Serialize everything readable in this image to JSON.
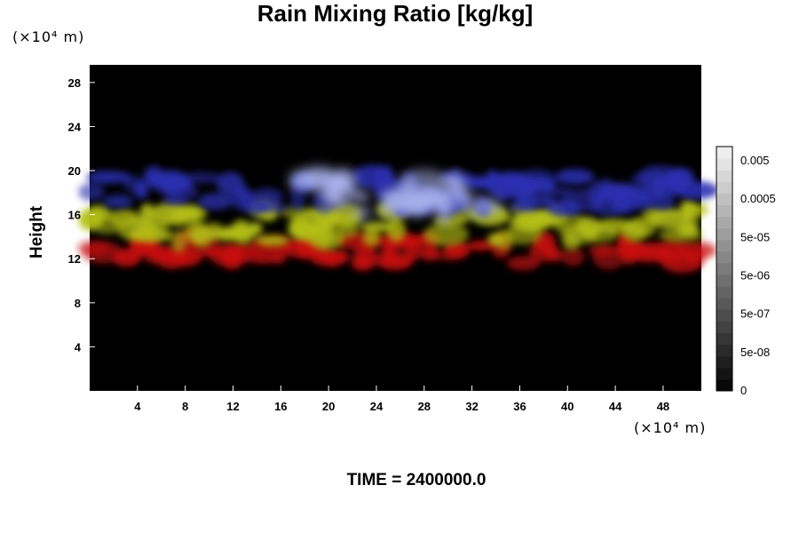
{
  "title": "Rain Mixing Ratio [kg/kg]",
  "y_unit": "(×10⁴ m)",
  "x_unit": "(×10⁴ m)",
  "ylabel": "Height",
  "time_label": "TIME = 2400000.0",
  "chart_data": {
    "type": "heatmap",
    "title": "Rain Mixing Ratio [kg/kg]",
    "xlabel": "",
    "ylabel": "Height",
    "x_unit": "(×10⁴ m)",
    "y_unit": "(×10⁴ m)",
    "xlim": [
      0,
      51.2
    ],
    "ylim": [
      0,
      29.6
    ],
    "x_ticks": [
      4,
      8,
      12,
      16,
      20,
      24,
      28,
      32,
      36,
      40,
      44,
      48
    ],
    "y_ticks": [
      4,
      8,
      12,
      16,
      20,
      24,
      28
    ],
    "grid": false,
    "colorbar": {
      "labels": [
        "0",
        "5e-08",
        "5e-07",
        "5e-06",
        "5e-05",
        "0.0005",
        "0.005"
      ],
      "levels": 21
    },
    "layers": [
      {
        "name": "red band",
        "color": "#c81010",
        "y_range": [
          11.5,
          13.8
        ],
        "x_range": [
          0,
          51.2
        ]
      },
      {
        "name": "yellow band",
        "color": "#b4bf14",
        "y_range": [
          13.5,
          16.5
        ],
        "x_range": [
          0,
          51.2
        ]
      },
      {
        "name": "blue band",
        "color": "#2a2fb0",
        "y_range": [
          16.5,
          19.5
        ],
        "x_range": [
          0,
          51.2
        ]
      },
      {
        "name": "light blue core",
        "color": "#a8b0ec",
        "y_range": [
          15.8,
          19.5
        ],
        "x_range": [
          18,
          33
        ]
      }
    ],
    "annotation": "TIME = 2400000.0"
  }
}
